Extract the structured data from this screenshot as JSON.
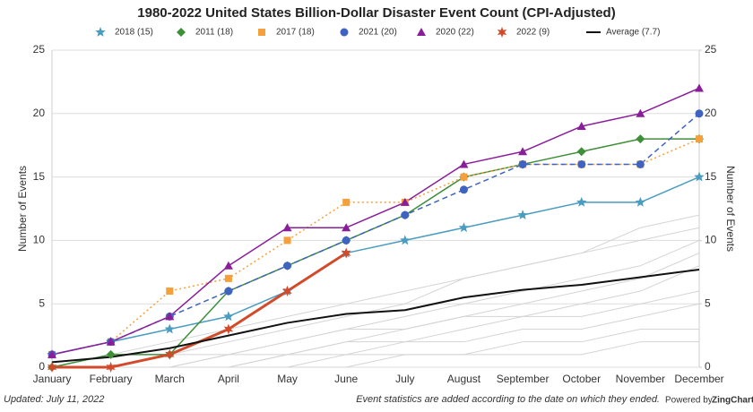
{
  "chart_data": {
    "type": "line",
    "title": "1980-2022 United States Billion-Dollar Disaster Event Count (CPI-Adjusted)",
    "categories": [
      "January",
      "February",
      "March",
      "April",
      "May",
      "June",
      "July",
      "August",
      "September",
      "October",
      "November",
      "December"
    ],
    "ylabel": "Number of Events",
    "y2label": "Number of Events",
    "ylim": [
      0,
      25
    ],
    "yticks": [
      0,
      5,
      10,
      15,
      20,
      25
    ],
    "y2lim": [
      0,
      25
    ],
    "y2ticks": [
      0,
      5,
      10,
      15,
      20,
      25
    ],
    "grid": true,
    "legend": "top",
    "background_series": [
      {
        "color": "#d4d4d4",
        "values": [
          0,
          1,
          2,
          3,
          4,
          5,
          6,
          7,
          8,
          9,
          11,
          12
        ]
      },
      {
        "color": "#d4d4d4",
        "values": [
          0,
          0,
          1,
          2,
          3,
          4,
          5,
          7,
          8,
          9,
          10,
          11
        ]
      },
      {
        "color": "#d4d4d4",
        "values": [
          0,
          0,
          1,
          1,
          2,
          3,
          4,
          5,
          6,
          7,
          8,
          10
        ]
      },
      {
        "color": "#d4d4d4",
        "values": [
          0,
          0,
          0,
          1,
          2,
          3,
          3,
          4,
          5,
          6,
          7,
          9
        ]
      },
      {
        "color": "#d4d4d4",
        "values": [
          0,
          0,
          0,
          1,
          1,
          2,
          3,
          4,
          4,
          5,
          6,
          8
        ]
      },
      {
        "color": "#d4d4d4",
        "values": [
          0,
          0,
          0,
          0,
          1,
          2,
          2,
          3,
          4,
          4,
          5,
          6
        ]
      },
      {
        "color": "#d4d4d4",
        "values": [
          0,
          0,
          0,
          0,
          1,
          1,
          2,
          2,
          3,
          3,
          4,
          5
        ]
      },
      {
        "color": "#d4d4d4",
        "values": [
          0,
          0,
          0,
          0,
          0,
          1,
          1,
          1,
          2,
          2,
          3,
          3
        ]
      },
      {
        "color": "#d4d4d4",
        "values": [
          0,
          0,
          0,
          0,
          0,
          0,
          1,
          1,
          1,
          1,
          2,
          2
        ]
      }
    ],
    "series": [
      {
        "name": "2018 (15)",
        "color": "#4a9cc0",
        "marker": "star",
        "dash": "solid",
        "width": 1.5,
        "values": [
          1,
          2,
          3,
          4,
          6,
          9,
          10,
          11,
          12,
          13,
          13,
          15
        ]
      },
      {
        "name": "2011 (18)",
        "color": "#3f8f3a",
        "marker": "diamond",
        "dash": "solid",
        "width": 1.5,
        "values": [
          0,
          1,
          1,
          6,
          8,
          10,
          12,
          15,
          16,
          17,
          18,
          18
        ]
      },
      {
        "name": "2017 (18)",
        "color": "#f5a03a",
        "marker": "square",
        "dash": "dotted",
        "width": 1.5,
        "values": [
          1,
          2,
          6,
          7,
          10,
          13,
          13,
          15,
          16,
          16,
          16,
          18
        ]
      },
      {
        "name": "2021 (20)",
        "color": "#3e63c0",
        "marker": "circle",
        "dash": "dashed",
        "width": 1.5,
        "values": [
          1,
          2,
          4,
          6,
          8,
          10,
          12,
          14,
          16,
          16,
          16,
          20
        ]
      },
      {
        "name": "2020 (22)",
        "color": "#8a1e9a",
        "marker": "triangle",
        "dash": "solid",
        "width": 1.5,
        "values": [
          1,
          2,
          4,
          8,
          11,
          11,
          13,
          16,
          17,
          19,
          20,
          22
        ]
      },
      {
        "name": "2022 (9)",
        "color": "#d24a2a",
        "marker": "asterisk",
        "dash": "solid",
        "width": 3,
        "values": [
          0,
          0,
          1,
          3,
          6,
          9,
          null,
          null,
          null,
          null,
          null,
          null
        ]
      },
      {
        "name": "Average (7.7)",
        "color": "#111111",
        "marker": "none",
        "dash": "solid",
        "width": 2,
        "values": [
          0.4,
          0.8,
          1.5,
          2.5,
          3.5,
          4.2,
          4.5,
          5.5,
          6.1,
          6.5,
          7.1,
          7.7
        ]
      }
    ],
    "footer_left": "Updated: July 11, 2022",
    "footer_right": "Event statistics are added according to the date on which they ended.",
    "credit_prefix": "Powered by",
    "credit_brand": "ZingChart"
  }
}
